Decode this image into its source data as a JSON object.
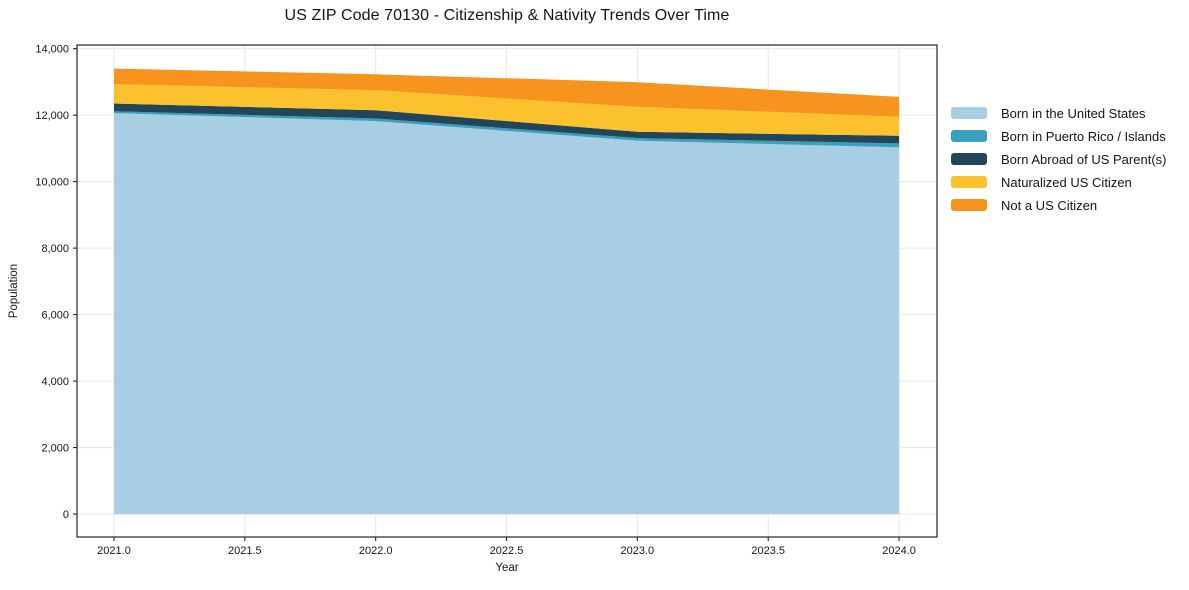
{
  "figure": {
    "background": "#ffffff",
    "text_color": "#151515",
    "spine_color": "#242424"
  },
  "chart_data": {
    "type": "area",
    "stacked": true,
    "title": "US ZIP Code 70130 - Citizenship & Nativity Trends Over Time",
    "xlabel": "Year",
    "ylabel": "Population",
    "x": [
      2021,
      2022,
      2023,
      2024
    ],
    "series": [
      {
        "name": "Born in the United States",
        "color": "#a7cee3",
        "values": [
          12060,
          11820,
          11230,
          11030
        ]
      },
      {
        "name": "Born in Puerto Rico / Islands",
        "color": "#3aa0bd",
        "values": [
          60,
          80,
          80,
          120
        ]
      },
      {
        "name": "Born Abroad of US Parent(s)",
        "color": "#23455a",
        "values": [
          230,
          250,
          190,
          230
        ]
      },
      {
        "name": "Naturalized US Citizen",
        "color": "#fcc22d",
        "values": [
          580,
          600,
          750,
          570
        ]
      },
      {
        "name": "Not a US Citizen",
        "color": "#f6941d",
        "values": [
          470,
          480,
          740,
          600
        ]
      }
    ],
    "stack_totals": [
      13400,
      13230,
      12990,
      12550
    ],
    "xlim": [
      2020.8586,
      2024.145
    ],
    "ylim": [
      -690,
      14110
    ],
    "xticks": {
      "values": [
        2021.0,
        2021.5,
        2022.0,
        2022.5,
        2023.0,
        2023.5,
        2024.0
      ],
      "labels": [
        "2021.0",
        "2021.5",
        "2022.0",
        "2022.5",
        "2023.0",
        "2023.5",
        "2024.0"
      ]
    },
    "yticks": {
      "values": [
        0,
        2000,
        4000,
        6000,
        8000,
        10000,
        12000,
        14000
      ],
      "labels": [
        "0",
        "2,000",
        "4,000",
        "6,000",
        "8,000",
        "10,000",
        "12,000",
        "14,000"
      ]
    },
    "grid": true,
    "grid_color": "#e7e7e7",
    "legend_position": "right"
  }
}
